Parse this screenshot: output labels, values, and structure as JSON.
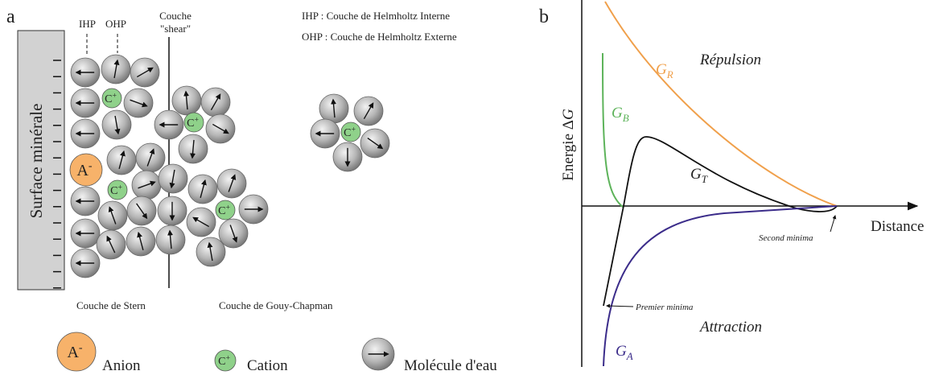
{
  "panel_a": {
    "letter": "a",
    "ihp": "IHP",
    "ohp": "OHP",
    "shear": [
      "Couche",
      "\"shear\""
    ],
    "key": [
      "IHP : Couche de Helmholtz Interne",
      "OHP : Couche de Helmholtz Externe"
    ],
    "surface": "Surface minérale",
    "stern": "Couche de Stern",
    "gouy": "Couche de Gouy-Chapman",
    "anion": {
      "symbol": "A",
      "charge": "-"
    },
    "cation": {
      "symbol": "C",
      "charge": "+"
    },
    "legend": [
      "Anion",
      "Cation",
      "Molécule d'eau"
    ]
  },
  "panel_b": {
    "letter": "b",
    "y_label": {
      "text": "Energie Δ",
      "var": "G"
    },
    "x_label": "Distance",
    "repulsion": "Répulsion",
    "attraction": "Attraction",
    "curves": {
      "GR": {
        "base": "G",
        "sub": "R"
      },
      "GB": {
        "base": "G",
        "sub": "B"
      },
      "GT": {
        "base": "G",
        "sub": "T"
      },
      "GA": {
        "base": "G",
        "sub": "A"
      }
    },
    "second_min": "Second minima",
    "first_min": "Premier minima"
  }
}
